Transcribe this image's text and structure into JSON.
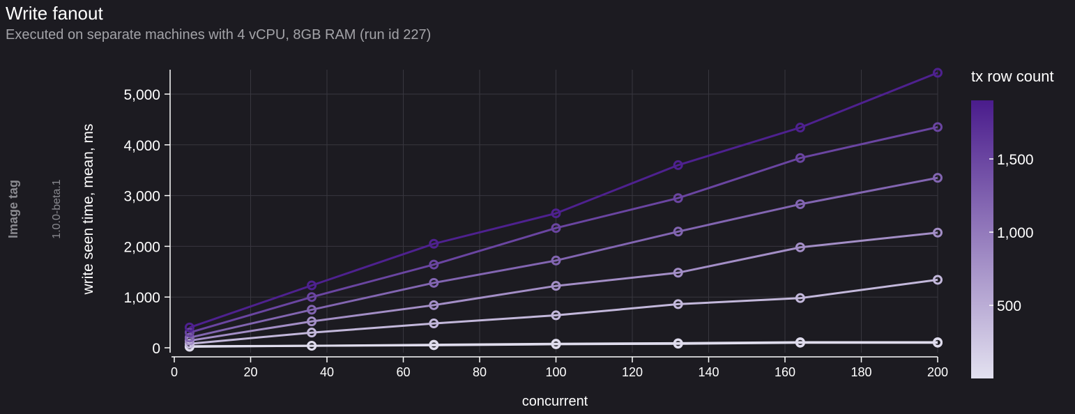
{
  "header": {
    "title": "Write fanout",
    "subtitle": "Executed on separate machines with 4 vCPU, 8GB RAM (run id 227)"
  },
  "facet": {
    "label": "Image tag",
    "value": "1.0.0-beta.1"
  },
  "chart_data": {
    "type": "line",
    "title": "Write fanout",
    "subtitle": "Executed on separate machines with 4 vCPU, 8GB RAM (run id 227)",
    "xlabel": "concurrent",
    "ylabel": "write seen time, mean, ms",
    "xlim": [
      0,
      200
    ],
    "ylim": [
      0,
      5400
    ],
    "xticks": [
      0,
      20,
      40,
      60,
      80,
      100,
      120,
      140,
      160,
      180,
      200
    ],
    "yticks": [
      0,
      1000,
      2000,
      3000,
      4000,
      5000
    ],
    "xtick_labels": [
      "0",
      "20",
      "40",
      "60",
      "80",
      "100",
      "120",
      "140",
      "160",
      "180",
      "200"
    ],
    "ytick_labels": [
      "0",
      "1,000",
      "2,000",
      "3,000",
      "4,000",
      "5,000"
    ],
    "grid": true,
    "x": [
      4,
      36,
      68,
      100,
      132,
      164,
      200
    ],
    "series": [
      {
        "tx_row_count": 1,
        "values": [
          20,
          40,
          50,
          70,
          80,
          100,
          100
        ]
      },
      {
        "tx_row_count": 50,
        "values": [
          30,
          40,
          60,
          80,
          90,
          110,
          110
        ]
      },
      {
        "tx_row_count": 400,
        "values": [
          80,
          300,
          480,
          640,
          860,
          980,
          1340
        ]
      },
      {
        "tx_row_count": 800,
        "values": [
          140,
          520,
          840,
          1220,
          1480,
          1980,
          2270
        ]
      },
      {
        "tx_row_count": 1200,
        "values": [
          200,
          750,
          1280,
          1720,
          2290,
          2830,
          3350
        ]
      },
      {
        "tx_row_count": 1500,
        "values": [
          300,
          1000,
          1640,
          2360,
          2950,
          3740,
          4350
        ]
      },
      {
        "tx_row_count": 1850,
        "values": [
          400,
          1230,
          2050,
          2650,
          3600,
          4340,
          5420
        ]
      }
    ],
    "legend": {
      "title": "tx row count",
      "placement": "right",
      "type": "colorbar",
      "range": [
        1,
        1900
      ],
      "ticks": [
        500,
        1000,
        1500
      ],
      "tick_labels": [
        "500",
        "1,000",
        "1,500"
      ],
      "color_low": "#e3e1f0",
      "color_high": "#4a1c8c"
    }
  }
}
